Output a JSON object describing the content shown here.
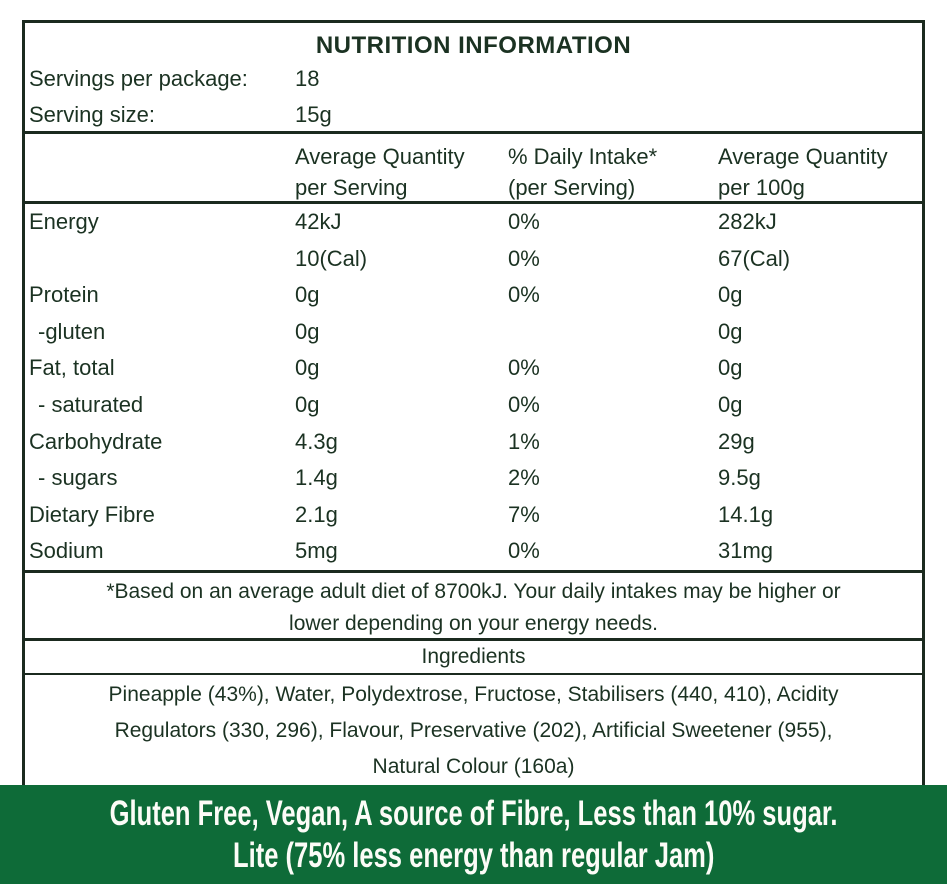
{
  "title": "NUTRITION INFORMATION",
  "serving_info": {
    "servings_label": "Servings per package:",
    "servings_value": "18",
    "size_label": "Serving size:",
    "size_value": "15g"
  },
  "columns": {
    "per_serving_line1": "Average Quantity",
    "per_serving_line2": "per Serving",
    "daily_intake_line1": "% Daily Intake*",
    "daily_intake_line2": "(per Serving)",
    "per_100g_line1": "Average Quantity",
    "per_100g_line2": "per 100g"
  },
  "rows": [
    {
      "label": "Energy",
      "per_serving": "42kJ",
      "daily_intake": "0%",
      "per_100g": "282kJ"
    },
    {
      "label": "",
      "per_serving": "10(Cal)",
      "daily_intake": "0%",
      "per_100g": "67(Cal)"
    },
    {
      "label": "Protein",
      "per_serving": "0g",
      "daily_intake": "0%",
      "per_100g": "0g"
    },
    {
      "label": "-gluten",
      "per_serving": "0g",
      "daily_intake": "",
      "per_100g": "0g"
    },
    {
      "label": "Fat, total",
      "per_serving": "0g",
      "daily_intake": "0%",
      "per_100g": "0g"
    },
    {
      "label": "- saturated",
      "per_serving": "0g",
      "daily_intake": "0%",
      "per_100g": "0g"
    },
    {
      "label": "Carbohydrate",
      "per_serving": "4.3g",
      "daily_intake": "1%",
      "per_100g": "29g"
    },
    {
      "label": "- sugars",
      "per_serving": "1.4g",
      "daily_intake": "2%",
      "per_100g": "9.5g"
    },
    {
      "label": "Dietary Fibre",
      "per_serving": "2.1g",
      "daily_intake": "7%",
      "per_100g": "14.1g"
    },
    {
      "label": "Sodium",
      "per_serving": "5mg",
      "daily_intake": "0%",
      "per_100g": "31mg"
    }
  ],
  "footnote": {
    "line1": "*Based on an average adult diet of 8700kJ. Your daily intakes may be higher or",
    "line2": "lower depending on your energy needs."
  },
  "ingredients": {
    "header": "Ingredients",
    "line1": "Pineapple (43%), Water, Polydextrose, Fructose, Stabilisers (440, 410), Acidity",
    "line2": "Regulators (330, 296), Flavour, Preservative (202), Artificial Sweetener (955),",
    "line3": "Natural Colour (160a)"
  },
  "banner": {
    "line1": "Gluten Free, Vegan, A source of Fibre, Less than 10% sugar.",
    "line2": "Lite (75% less energy than regular Jam)",
    "background_color": "#0e6b38",
    "text_color": "#fcfcf7"
  },
  "colors": {
    "text": "#1b3222",
    "border": "#1b2a1f",
    "background": "#ffffff"
  }
}
